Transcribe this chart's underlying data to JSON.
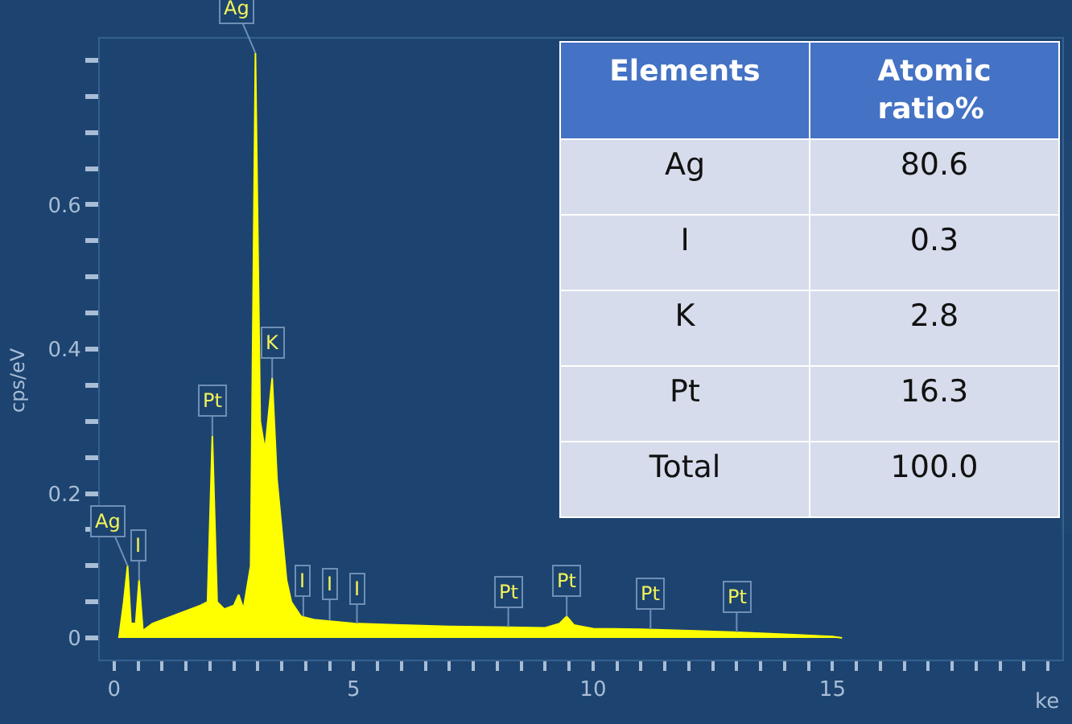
{
  "chart_data": [
    {
      "type": "area",
      "ylabel": "cps/eV",
      "xlabel": "ke",
      "grid": false,
      "x": [
        0.1,
        0.2,
        0.28,
        0.35,
        0.45,
        0.52,
        0.6,
        0.8,
        1.0,
        1.2,
        1.4,
        1.6,
        1.8,
        1.95,
        2.05,
        2.15,
        2.3,
        2.5,
        2.6,
        2.7,
        2.85,
        2.95,
        3.05,
        3.15,
        3.3,
        3.4,
        3.5,
        3.6,
        3.7,
        3.9,
        4.2,
        5,
        6,
        7,
        8,
        9,
        9.3,
        9.45,
        9.6,
        10,
        11,
        12,
        13,
        14,
        15,
        15.2
      ],
      "series": [
        {
          "color": "#ffff00",
          "values": [
            0,
            0.05,
            0.1,
            0.02,
            0.02,
            0.08,
            0.01,
            0.02,
            0.025,
            0.03,
            0.035,
            0.04,
            0.045,
            0.05,
            0.28,
            0.05,
            0.04,
            0.045,
            0.06,
            0.04,
            0.1,
            0.81,
            0.3,
            0.26,
            0.36,
            0.22,
            0.15,
            0.08,
            0.05,
            0.03,
            0.025,
            0.02,
            0.018,
            0.016,
            0.015,
            0.014,
            0.02,
            0.03,
            0.018,
            0.013,
            0.012,
            0.01,
            0.008,
            0.005,
            0.002,
            0
          ]
        }
      ],
      "xlim": [
        -0.3,
        19.8
      ],
      "xticks": [
        0,
        {
          "value": 0.5,
          "label": null
        },
        {
          "value": 1,
          "label": null
        },
        {
          "value": 1.5,
          "label": null
        },
        {
          "value": 2,
          "label": null
        },
        {
          "value": 2.5,
          "label": null
        },
        {
          "value": 3,
          "label": null
        },
        {
          "value": 3.5,
          "label": null
        },
        {
          "value": 4,
          "label": null
        },
        {
          "value": 4.5,
          "label": null
        },
        5,
        {
          "value": 5.5,
          "label": null
        },
        {
          "value": 6,
          "label": null
        },
        {
          "value": 6.5,
          "label": null
        },
        {
          "value": 7,
          "label": null
        },
        {
          "value": 7.5,
          "label": null
        },
        {
          "value": 8,
          "label": null
        },
        {
          "value": 8.5,
          "label": null
        },
        {
          "value": 9,
          "label": null
        },
        {
          "value": 9.5,
          "label": null
        },
        10,
        {
          "value": 10.5,
          "label": null
        },
        {
          "value": 11,
          "label": null
        },
        {
          "value": 11.5,
          "label": null
        },
        {
          "value": 12,
          "label": null
        },
        {
          "value": 12.5,
          "label": null
        },
        {
          "value": 13,
          "label": null
        },
        {
          "value": 13.5,
          "label": null
        },
        {
          "value": 14,
          "label": null
        },
        {
          "value": 14.5,
          "label": null
        },
        15,
        {
          "value": 15.5,
          "label": null
        },
        {
          "value": 16,
          "label": null
        },
        {
          "value": 16.5,
          "label": null
        },
        {
          "value": 17,
          "label": null
        },
        {
          "value": 17.5,
          "label": null
        },
        {
          "value": 18,
          "label": null
        },
        {
          "value": 18.5,
          "label": null
        },
        {
          "value": 19,
          "label": null
        },
        {
          "value": 19.5,
          "label": null
        }
      ],
      "ylim": [
        -0.03,
        0.83
      ],
      "yticks": [
        0,
        {
          "value": 0.05,
          "label": null
        },
        {
          "value": 0.1,
          "label": null
        },
        {
          "value": 0.15,
          "label": null
        },
        0.2,
        {
          "value": 0.25,
          "label": null
        },
        {
          "value": 0.3,
          "label": null
        },
        {
          "value": 0.35,
          "label": null
        },
        0.4,
        {
          "value": 0.45,
          "label": null
        },
        {
          "value": 0.5,
          "label": null
        },
        {
          "value": 0.55,
          "label": null
        },
        0.6,
        {
          "value": 0.65,
          "label": null
        },
        {
          "value": 0.7,
          "label": null
        },
        {
          "value": 0.75,
          "label": null
        },
        {
          "value": 0.8,
          "label": null
        }
      ],
      "annotations": [
        {
          "text": "Ag",
          "x": 2.95,
          "y": 0.81
        },
        {
          "text": "K",
          "x": 3.3,
          "y": 0.36
        },
        {
          "text": "Pt",
          "x": 2.05,
          "y": 0.28
        },
        {
          "text": "Ag",
          "x": 0.28,
          "y": 0.1
        },
        {
          "text": "I",
          "x": 0.52,
          "y": 0.08
        },
        {
          "text": "I",
          "x": 3.95,
          "y": 0.03
        },
        {
          "text": "I",
          "x": 4.5,
          "y": 0.025
        },
        {
          "text": "I",
          "x": 5.07,
          "y": 0.02
        },
        {
          "text": "Pt",
          "x": 8.23,
          "y": 0.015
        },
        {
          "text": "Pt",
          "x": 9.45,
          "y": 0.03
        },
        {
          "text": "Pt",
          "x": 11.2,
          "y": 0.012
        },
        {
          "text": "Pt",
          "x": 13.0,
          "y": 0.008
        }
      ]
    },
    {
      "type": "other",
      "annotations": [
        "Elements",
        "Atomic ratio%",
        "Ag",
        "80.6",
        "I",
        "0.3",
        "K",
        "2.8",
        "Pt",
        "16.3",
        "Total",
        "100.0"
      ]
    }
  ]
}
